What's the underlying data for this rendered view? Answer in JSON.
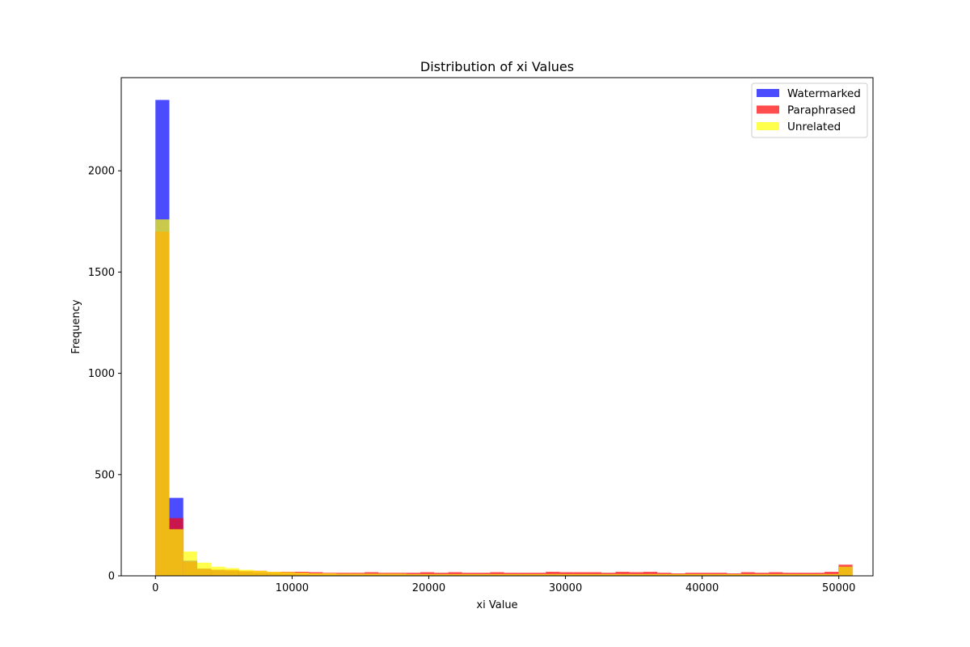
{
  "chart_data": {
    "type": "bar",
    "title": "Distribution of xi Values",
    "xlabel": "xi Value",
    "ylabel": "Frequency",
    "xlim": [
      -2500,
      52500
    ],
    "ylim": [
      0,
      2460
    ],
    "xticks": [
      0,
      10000,
      20000,
      30000,
      40000,
      50000
    ],
    "xtick_labels": [
      "0",
      "10000",
      "20000",
      "30000",
      "40000",
      "50000"
    ],
    "yticks": [
      0,
      500,
      1000,
      1500,
      2000
    ],
    "ytick_labels": [
      "0",
      "500",
      "1000",
      "1500",
      "2000"
    ],
    "grid": false,
    "legend_position": "top-right",
    "bin_width": 1020,
    "bin_start": 0,
    "series": [
      {
        "name": "Watermarked",
        "color": "#0000ff",
        "opacity": 0.7,
        "values": [
          2350,
          385,
          75,
          35,
          30,
          25,
          20,
          15,
          12,
          10,
          8,
          6,
          6,
          6,
          5,
          5,
          5,
          5,
          5,
          5,
          5,
          5,
          5,
          5,
          5,
          5,
          5,
          5,
          5,
          5,
          5,
          5,
          5,
          5,
          5,
          5,
          5,
          5,
          5,
          5,
          5,
          5,
          5,
          5,
          5,
          5,
          5,
          5,
          5,
          45
        ]
      },
      {
        "name": "Paraphrased",
        "color": "#ff0000",
        "opacity": 0.7,
        "values": [
          1700,
          285,
          70,
          35,
          30,
          30,
          25,
          25,
          20,
          20,
          20,
          18,
          15,
          15,
          15,
          18,
          15,
          15,
          15,
          18,
          15,
          18,
          15,
          15,
          18,
          15,
          15,
          15,
          20,
          18,
          18,
          18,
          15,
          20,
          18,
          20,
          15,
          12,
          15,
          15,
          15,
          12,
          18,
          15,
          18,
          15,
          15,
          15,
          20,
          55
        ]
      },
      {
        "name": "Unrelated",
        "color": "#ffff00",
        "opacity": 0.7,
        "values": [
          1760,
          230,
          120,
          65,
          45,
          38,
          30,
          25,
          20,
          18,
          15,
          12,
          12,
          10,
          10,
          10,
          10,
          10,
          8,
          8,
          8,
          8,
          8,
          8,
          8,
          8,
          8,
          8,
          8,
          8,
          8,
          8,
          8,
          8,
          8,
          8,
          8,
          8,
          8,
          8,
          8,
          8,
          8,
          8,
          8,
          8,
          8,
          8,
          8,
          45
        ]
      }
    ]
  }
}
